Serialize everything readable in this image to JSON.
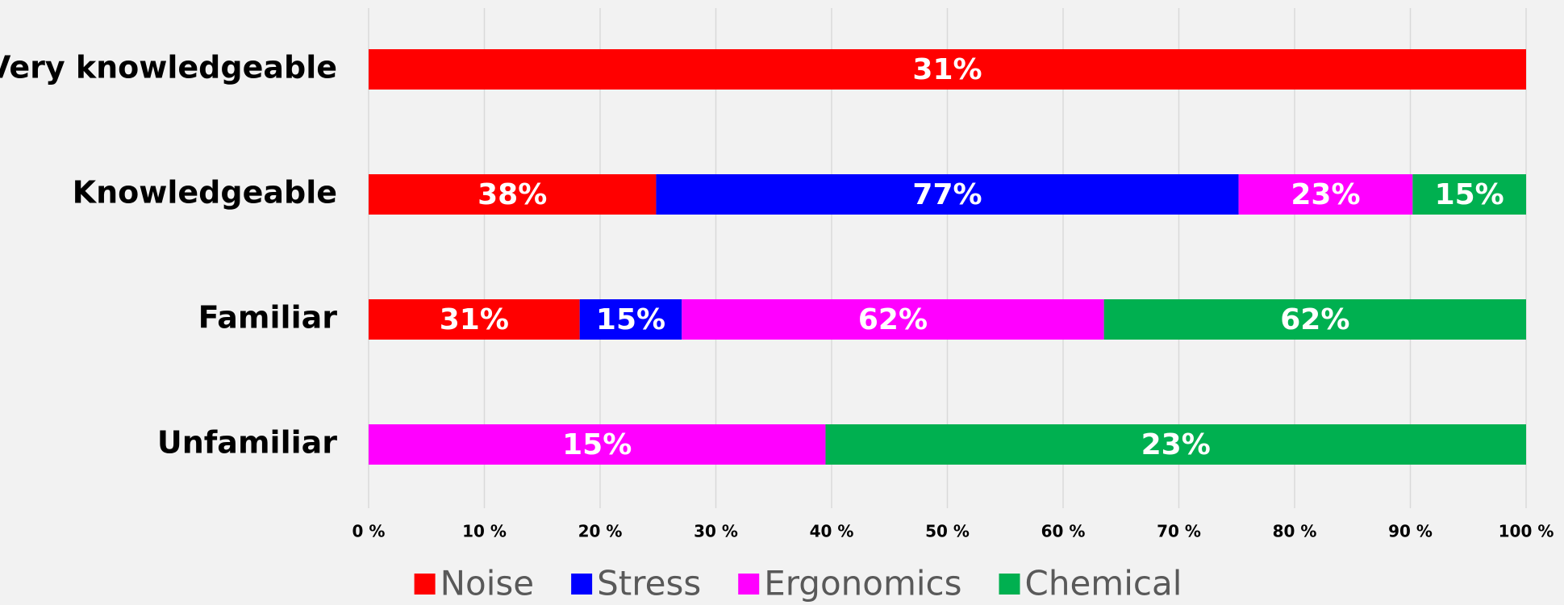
{
  "chart_data": {
    "type": "bar",
    "orientation": "horizontal",
    "stacked": "percent",
    "categories": [
      "Very knowledgeable",
      "Knowledgeable",
      "Familiar",
      "Unfamiliar"
    ],
    "series": [
      {
        "name": "Noise",
        "color": "#ff0000",
        "values": [
          31,
          38,
          31,
          null
        ],
        "value_labels": [
          "31%",
          "38%",
          "31%",
          null
        ]
      },
      {
        "name": "Stress",
        "color": "#0000ff",
        "values": [
          null,
          77,
          15,
          null
        ],
        "value_labels": [
          null,
          "77%",
          "15%",
          null
        ]
      },
      {
        "name": "Ergonomics",
        "color": "#ff00ff",
        "values": [
          null,
          23,
          62,
          15
        ],
        "value_labels": [
          null,
          "23%",
          "62%",
          "15%"
        ]
      },
      {
        "name": "Chemical",
        "color": "#00b050",
        "values": [
          null,
          15,
          62,
          23
        ],
        "value_labels": [
          null,
          "15%",
          "62%",
          "23%"
        ]
      }
    ],
    "xlim": [
      0,
      100
    ],
    "xticks": [
      {
        "value": 0,
        "label": "0 %"
      },
      {
        "value": 10,
        "label": "10 %"
      },
      {
        "value": 20,
        "label": "20 %"
      },
      {
        "value": 30,
        "label": "30 %"
      },
      {
        "value": 40,
        "label": "40 %"
      },
      {
        "value": 50,
        "label": "50 %"
      },
      {
        "value": 60,
        "label": "60 %"
      },
      {
        "value": 70,
        "label": "70 %"
      },
      {
        "value": 80,
        "label": "80 %"
      },
      {
        "value": 90,
        "label": "90 %"
      },
      {
        "value": 100,
        "label": "100 %"
      }
    ],
    "grid": true,
    "legend": "bottom"
  }
}
